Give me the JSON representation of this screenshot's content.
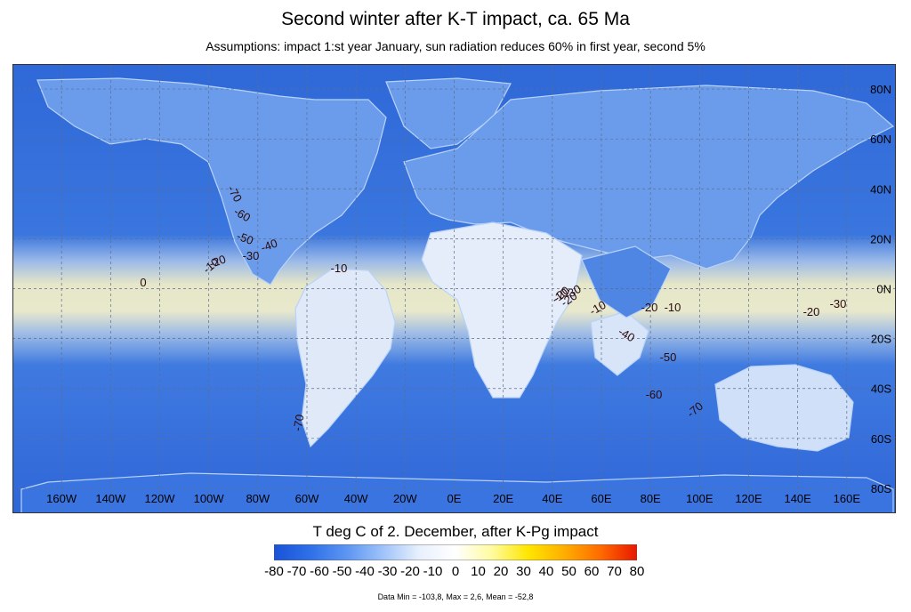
{
  "title": "Second winter after K-T impact, ca. 65 Ma",
  "subtitle": "Assumptions: impact 1:st year January, sun radiation reduces 60% in first year, second 5%",
  "map": {
    "lon_labels": [
      "160W",
      "140W",
      "120W",
      "100W",
      "80W",
      "60W",
      "40W",
      "20W",
      "0E",
      "20E",
      "40E",
      "60E",
      "80E",
      "100E",
      "120E",
      "140E",
      "160E"
    ],
    "lat_labels": [
      "80N",
      "60N",
      "40N",
      "20N",
      "0N",
      "20S",
      "40S",
      "60S",
      "80S"
    ],
    "contour_labels": [
      "-70",
      "-60",
      "-50",
      "-40",
      "-30",
      "-20",
      "-10",
      "0",
      "-10",
      "-20",
      "-30",
      "-10",
      "-20",
      "-10",
      "-20",
      "-30",
      "-40",
      "-50",
      "-60",
      "-70",
      "-70",
      "-10",
      "-20"
    ],
    "colors": {
      "ocean": "#3a72dc",
      "equator_band": "#e9e8c6",
      "land": "#6a9ce8",
      "coast": "#b8d2f8"
    }
  },
  "colorbar": {
    "title": "T deg C of  2. December, after K-Pg  impact",
    "ticks": [
      "-80",
      "-70",
      "-60",
      "-50",
      "-40",
      "-30",
      "-20",
      "-10",
      "0",
      "10",
      "20",
      "30",
      "40",
      "50",
      "60",
      "70",
      "80"
    ],
    "range": [
      -80,
      80
    ],
    "colors": [
      "#1a52d8",
      "#2f70e8",
      "#5c95f2",
      "#9fc3fa",
      "#e8f0fc",
      "#ffffff",
      "#fffba0",
      "#ffe600",
      "#ffae00",
      "#ff6a00",
      "#e81800"
    ]
  },
  "stats": "Data Min = -103,8, Max = 2,6, Mean = -52,8"
}
